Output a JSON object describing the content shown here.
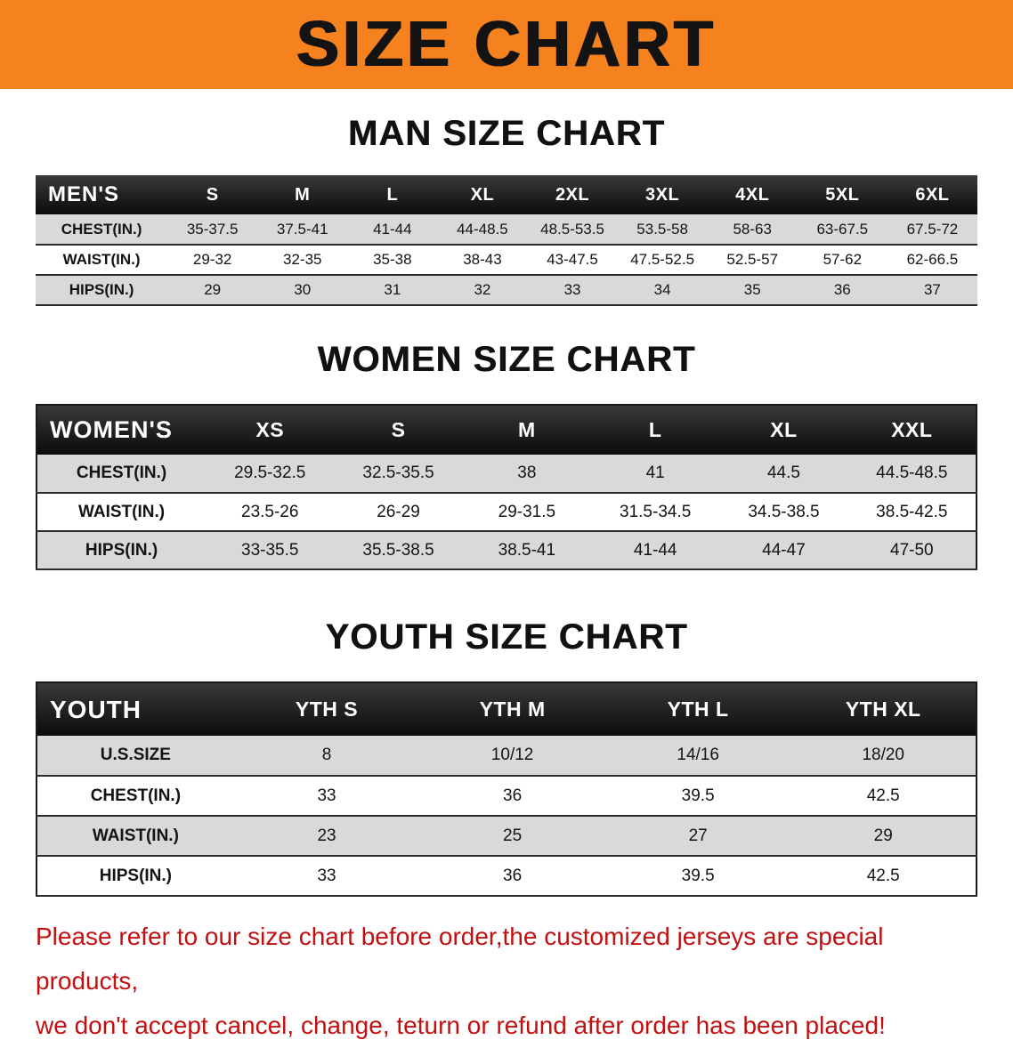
{
  "banner": {
    "title": "SIZE CHART",
    "bg_color": "#F5821F",
    "text_color": "#131313"
  },
  "sections": [
    {
      "heading": "MAN SIZE CHART",
      "table": {
        "name": "mens",
        "header": [
          "MEN'S",
          "S",
          "M",
          "L",
          "XL",
          "2XL",
          "3XL",
          "4XL",
          "5XL",
          "6XL"
        ],
        "rows": [
          [
            "CHEST(IN.)",
            "35-37.5",
            "37.5-41",
            "41-44",
            "44-48.5",
            "48.5-53.5",
            "53.5-58",
            "58-63",
            "63-67.5",
            "67.5-72"
          ],
          [
            "WAIST(IN.)",
            "29-32",
            "32-35",
            "35-38",
            "38-43",
            "43-47.5",
            "47.5-52.5",
            "52.5-57",
            "57-62",
            "62-66.5"
          ],
          [
            "HIPS(IN.)",
            "29",
            "30",
            "31",
            "32",
            "33",
            "34",
            "35",
            "36",
            "37"
          ]
        ]
      }
    },
    {
      "heading": "WOMEN SIZE CHART",
      "table": {
        "name": "womens",
        "header": [
          "WOMEN'S",
          "XS",
          "S",
          "M",
          "L",
          "XL",
          "XXL"
        ],
        "rows": [
          [
            "CHEST(IN.)",
            "29.5-32.5",
            "32.5-35.5",
            "38",
            "41",
            "44.5",
            "44.5-48.5"
          ],
          [
            "WAIST(IN.)",
            "23.5-26",
            "26-29",
            "29-31.5",
            "31.5-34.5",
            "34.5-38.5",
            "38.5-42.5"
          ],
          [
            "HIPS(IN.)",
            "33-35.5",
            "35.5-38.5",
            "38.5-41",
            "41-44",
            "44-47",
            "47-50"
          ]
        ]
      }
    },
    {
      "heading": "YOUTH SIZE CHART",
      "table": {
        "name": "youth",
        "header": [
          "YOUTH",
          "YTH S",
          "YTH M",
          "YTH L",
          "YTH XL"
        ],
        "rows": [
          [
            "U.S.SIZE",
            "8",
            "10/12",
            "14/16",
            "18/20"
          ],
          [
            "CHEST(IN.)",
            "33",
            "36",
            "39.5",
            "42.5"
          ],
          [
            "WAIST(IN.)",
            "23",
            "25",
            "27",
            "29"
          ],
          [
            "HIPS(IN.)",
            "33",
            "36",
            "39.5",
            "42.5"
          ]
        ]
      }
    }
  ],
  "footer_note": {
    "line1": "Please refer to our size chart before order,the customized jerseys are special products,",
    "line2": "we don't accept cancel, change, teturn or refund after order has been placed!",
    "color": "#c21010"
  }
}
